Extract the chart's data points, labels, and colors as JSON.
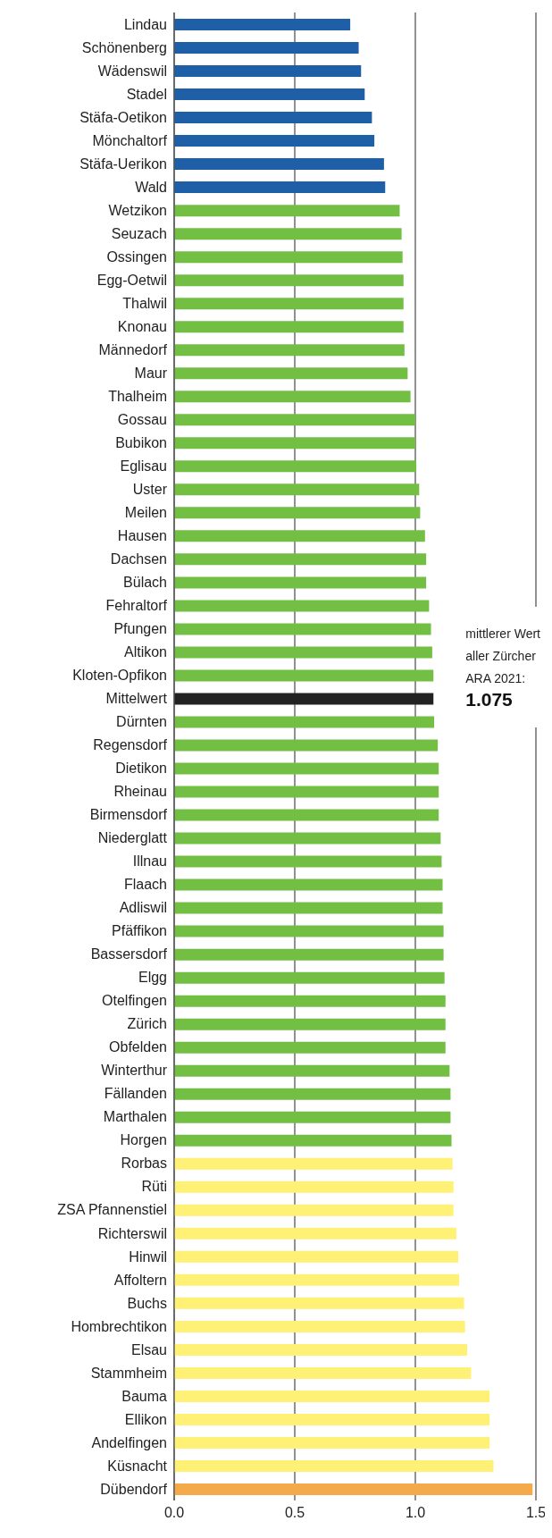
{
  "chart_data": {
    "type": "bar",
    "orientation": "horizontal",
    "categories": [
      "Lindau",
      "Schönenberg",
      "Wädenswil",
      "Stadel",
      "Stäfa-Oetikon",
      "Mönchaltorf",
      "Stäfa-Uerikon",
      "Wald",
      "Wetzikon",
      "Seuzach",
      "Ossingen",
      "Egg-Oetwil",
      "Thalwil",
      "Knonau",
      "Männedorf",
      "Maur",
      "Thalheim",
      "Gossau",
      "Bubikon",
      "Eglisau",
      "Uster",
      "Meilen",
      "Hausen",
      "Dachsen",
      "Bülach",
      "Fehraltorf",
      "Pfungen",
      "Altikon",
      "Kloten-Opfikon",
      "Mittelwert",
      "Dürnten",
      "Regensdorf",
      "Dietikon",
      "Rheinau",
      "Birmensdorf",
      "Niederglatt",
      "Illnau",
      "Flaach",
      "Adliswil",
      "Pfäffikon",
      "Bassersdorf",
      "Elgg",
      "Otelfingen",
      "Zürich",
      "Obfelden",
      "Winterthur",
      "Fällanden",
      "Marthalen",
      "Horgen",
      "Rorbas",
      "Rüti",
      "ZSA Pfannenstiel",
      "Richterswil",
      "Hinwil",
      "Affoltern",
      "Buchs",
      "Hombrechtikon",
      "Elsau",
      "Stammheim",
      "Bauma",
      "Ellikon",
      "Andelfingen",
      "Küsnacht",
      "Dübendorf"
    ],
    "values": [
      0.73,
      0.765,
      0.775,
      0.79,
      0.82,
      0.83,
      0.87,
      0.875,
      0.935,
      0.943,
      0.947,
      0.951,
      0.951,
      0.951,
      0.955,
      0.968,
      0.98,
      1.0,
      1.0,
      1.004,
      1.016,
      1.02,
      1.04,
      1.045,
      1.045,
      1.057,
      1.065,
      1.07,
      1.075,
      1.075,
      1.078,
      1.093,
      1.097,
      1.097,
      1.097,
      1.105,
      1.109,
      1.113,
      1.113,
      1.117,
      1.117,
      1.121,
      1.125,
      1.125,
      1.125,
      1.142,
      1.146,
      1.146,
      1.15,
      1.154,
      1.158,
      1.158,
      1.17,
      1.178,
      1.182,
      1.202,
      1.206,
      1.215,
      1.231,
      1.308,
      1.308,
      1.308,
      1.324,
      1.486
    ],
    "colors": [
      "#1f5fa8",
      "#1f5fa8",
      "#1f5fa8",
      "#1f5fa8",
      "#1f5fa8",
      "#1f5fa8",
      "#1f5fa8",
      "#1f5fa8",
      "#72bf44",
      "#72bf44",
      "#72bf44",
      "#72bf44",
      "#72bf44",
      "#72bf44",
      "#72bf44",
      "#72bf44",
      "#72bf44",
      "#72bf44",
      "#72bf44",
      "#72bf44",
      "#72bf44",
      "#72bf44",
      "#72bf44",
      "#72bf44",
      "#72bf44",
      "#72bf44",
      "#72bf44",
      "#72bf44",
      "#72bf44",
      "#222222",
      "#72bf44",
      "#72bf44",
      "#72bf44",
      "#72bf44",
      "#72bf44",
      "#72bf44",
      "#72bf44",
      "#72bf44",
      "#72bf44",
      "#72bf44",
      "#72bf44",
      "#72bf44",
      "#72bf44",
      "#72bf44",
      "#72bf44",
      "#72bf44",
      "#72bf44",
      "#72bf44",
      "#72bf44",
      "#fff176",
      "#fff176",
      "#fff176",
      "#fff176",
      "#fff176",
      "#fff176",
      "#fff176",
      "#fff176",
      "#fff176",
      "#fff176",
      "#fff176",
      "#fff176",
      "#fff176",
      "#fff176",
      "#f4a94a"
    ],
    "value_labels": [
      null,
      null,
      null,
      null,
      null,
      null,
      null,
      null,
      null,
      null,
      null,
      null,
      null,
      null,
      null,
      null,
      null,
      null,
      null,
      null,
      null,
      null,
      null,
      null,
      null,
      null,
      null,
      null,
      null,
      "1.075",
      null,
      null,
      null,
      null,
      null,
      null,
      null,
      null,
      null,
      null,
      null,
      null,
      null,
      null,
      null,
      null,
      null,
      null,
      null,
      null,
      null,
      null,
      null,
      null,
      null,
      null,
      null,
      null,
      null,
      null,
      null,
      null,
      null,
      null
    ],
    "annotations": [
      "mittlerer Wert aller Zürcher ARA 2021:"
    ],
    "xlim": [
      0,
      1.5
    ],
    "xticks": [
      {
        "value": 0,
        "label": "0.0"
      },
      {
        "value": 0.5,
        "label": "0.5"
      },
      {
        "value": 1,
        "label": "1.0"
      },
      {
        "value": 1.5,
        "label": "1.5"
      }
    ],
    "grid": "x",
    "legend": false
  }
}
